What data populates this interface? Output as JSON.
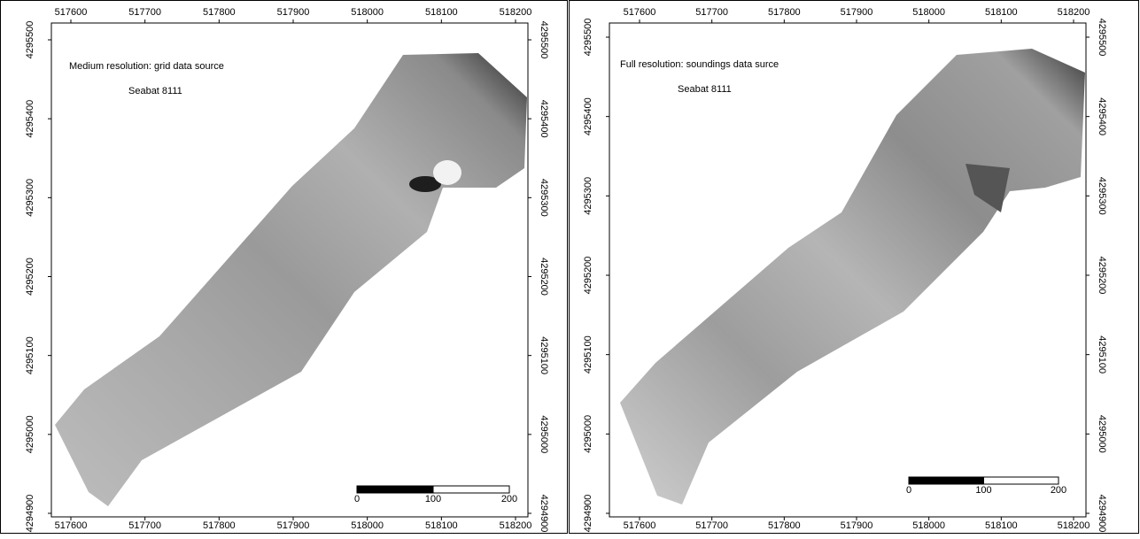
{
  "panels": [
    {
      "title": "Medium resolution: grid data source",
      "subtitle": "Seabat 8111",
      "xticks": [
        517600,
        517700,
        517800,
        517900,
        518000,
        518100,
        518200
      ],
      "yticks": [
        4294900,
        4295000,
        4295100,
        4295200,
        4295300,
        4295400,
        4295500
      ],
      "scale_bar": [
        0,
        100,
        200
      ]
    },
    {
      "title": "Full resolution: soundings data surce",
      "subtitle": "Seabat 8111",
      "xticks": [
        517600,
        517700,
        517800,
        517900,
        518000,
        518100,
        518200
      ],
      "yticks": [
        4294900,
        4295000,
        4295100,
        4295200,
        4295300,
        4295400,
        4295500
      ],
      "scale_bar": [
        0,
        100,
        200
      ]
    }
  ]
}
